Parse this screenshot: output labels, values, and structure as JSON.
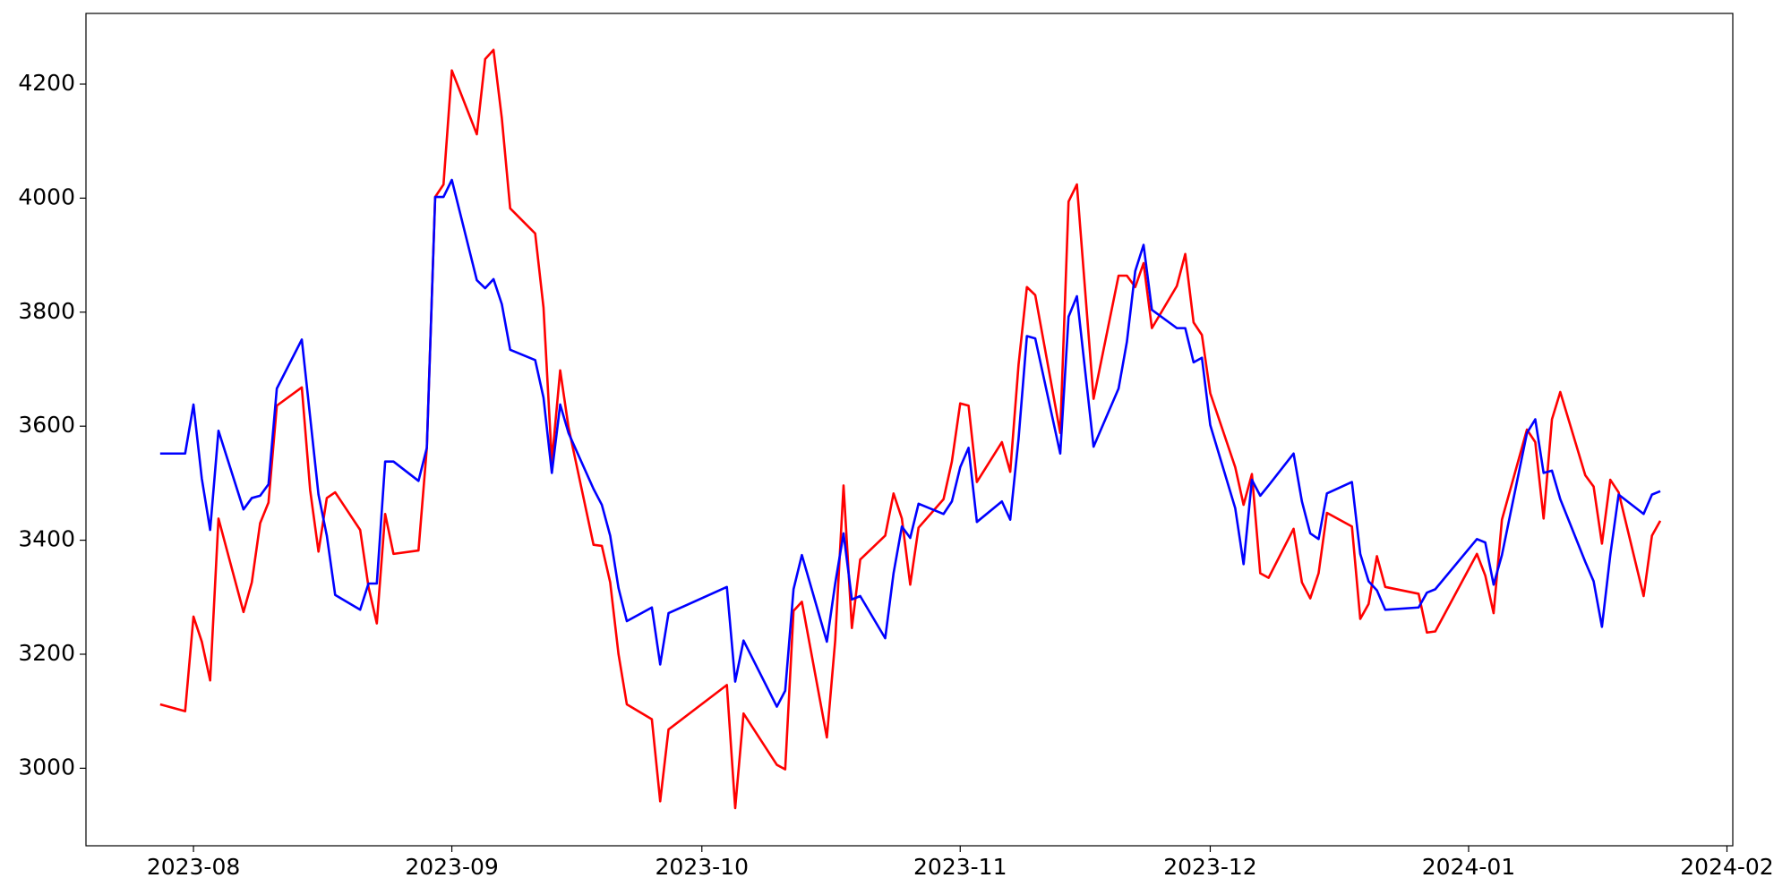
{
  "chart_data": {
    "type": "line",
    "x": [
      -4,
      -1,
      0,
      1,
      2,
      3,
      6,
      7,
      8,
      9,
      10,
      13,
      14,
      15,
      16,
      17,
      20,
      21,
      22,
      23,
      24,
      27,
      28,
      29,
      30,
      31,
      34,
      35,
      36,
      37,
      38,
      41,
      42,
      43,
      44,
      45,
      48,
      49,
      50,
      51,
      52,
      55,
      56,
      57,
      64,
      65,
      66,
      70,
      71,
      72,
      73,
      76,
      77,
      78,
      79,
      80,
      83,
      84,
      85,
      86,
      87,
      90,
      91,
      92,
      93,
      94,
      97,
      98,
      99,
      100,
      101,
      104,
      105,
      106,
      108,
      111,
      112,
      113,
      114,
      115,
      118,
      119,
      120,
      121,
      122,
      125,
      126,
      127,
      128,
      129,
      132,
      133,
      134,
      135,
      136,
      139,
      140,
      141,
      142,
      143,
      147,
      148,
      149,
      154,
      155,
      156,
      157,
      160,
      161,
      162,
      163,
      164,
      167,
      168,
      169,
      170,
      171,
      174,
      175,
      176
    ],
    "series": [
      {
        "color": "red",
        "values": [
          3112,
          3100,
          3266,
          3222,
          3154,
          3438,
          3274,
          3326,
          3430,
          3466,
          3636,
          3668,
          3488,
          3380,
          3474,
          3484,
          3418,
          3318,
          3254,
          3446,
          3376,
          3382,
          3562,
          4002,
          4024,
          4224,
          4112,
          4244,
          4260,
          4140,
          3982,
          3938,
          3808,
          3538,
          3698,
          3598,
          3392,
          3390,
          3326,
          3200,
          3112,
          3086,
          2942,
          3068,
          3146,
          2930,
          3096,
          3006,
          2998,
          3276,
          3292,
          3054,
          3224,
          3496,
          3246,
          3366,
          3408,
          3482,
          3438,
          3322,
          3422,
          3472,
          3538,
          3640,
          3636,
          3502,
          3572,
          3520,
          3708,
          3844,
          3830,
          3588,
          3994,
          4024,
          3648,
          3864,
          3864,
          3844,
          3886,
          3772,
          3846,
          3902,
          3782,
          3760,
          3658,
          3528,
          3462,
          3516,
          3342,
          3334,
          3420,
          3326,
          3298,
          3342,
          3448,
          3424,
          3262,
          3288,
          3372,
          3318,
          3306,
          3238,
          3240,
          3376,
          3338,
          3272,
          3436,
          3594,
          3572,
          3438,
          3612,
          3660,
          3514,
          3494,
          3394,
          3506,
          3484,
          3302,
          3408,
          3434
        ]
      },
      {
        "color": "blue",
        "values": [
          3552,
          3552,
          3638,
          3508,
          3418,
          3592,
          3454,
          3474,
          3478,
          3498,
          3666,
          3752,
          3616,
          3480,
          3408,
          3304,
          3278,
          3324,
          3324,
          3538,
          3538,
          3504,
          3562,
          4002,
          4002,
          4032,
          3856,
          3842,
          3858,
          3814,
          3734,
          3716,
          3650,
          3518,
          3638,
          3588,
          3490,
          3462,
          3408,
          3316,
          3258,
          3282,
          3182,
          3272,
          3318,
          3152,
          3224,
          3108,
          3136,
          3314,
          3374,
          3222,
          3324,
          3412,
          3296,
          3302,
          3228,
          3342,
          3424,
          3404,
          3464,
          3446,
          3468,
          3528,
          3562,
          3432,
          3468,
          3436,
          3578,
          3758,
          3754,
          3552,
          3792,
          3828,
          3564,
          3666,
          3748,
          3872,
          3918,
          3804,
          3772,
          3772,
          3712,
          3720,
          3602,
          3456,
          3358,
          3506,
          3478,
          3496,
          3552,
          3468,
          3412,
          3402,
          3482,
          3502,
          3376,
          3328,
          3312,
          3278,
          3282,
          3308,
          3314,
          3402,
          3396,
          3322,
          3374,
          3588,
          3612,
          3518,
          3522,
          3472,
          3362,
          3328,
          3248,
          3374,
          3480,
          3446,
          3480,
          3486
        ]
      }
    ],
    "xlim": [
      -12.9,
      184.7
    ],
    "xticks": [
      {
        "value": 0,
        "label": "2023-08"
      },
      {
        "value": 31,
        "label": "2023-09"
      },
      {
        "value": 61,
        "label": "2023-10"
      },
      {
        "value": 92,
        "label": "2023-11"
      },
      {
        "value": 122,
        "label": "2023-12"
      },
      {
        "value": 153,
        "label": "2024-01"
      },
      {
        "value": 184,
        "label": "2024-02"
      }
    ],
    "ylim": [
      2864,
      4324
    ],
    "yticks": [
      3000,
      3200,
      3400,
      3600,
      3800,
      4000,
      4200
    ]
  }
}
